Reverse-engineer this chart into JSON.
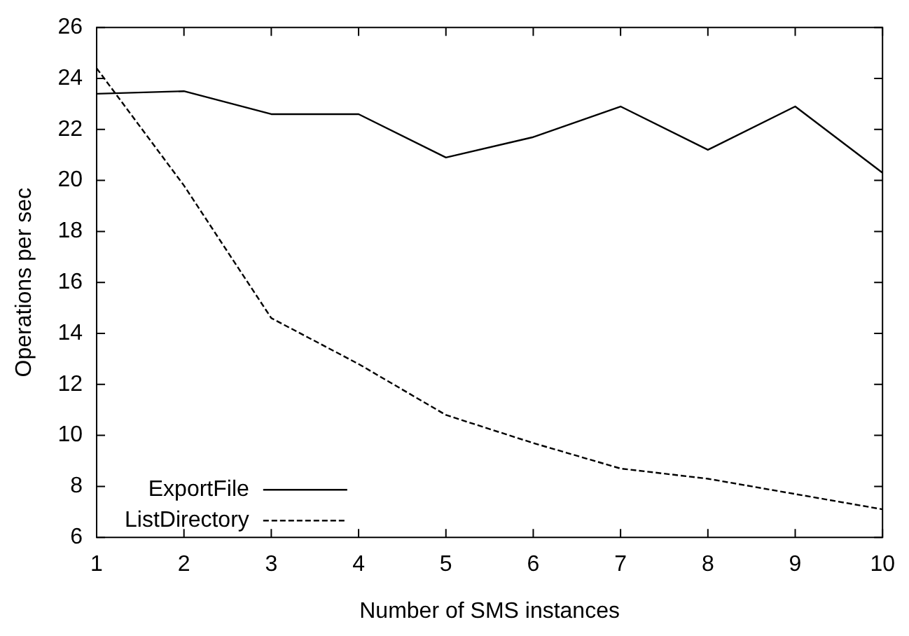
{
  "chart_data": {
    "type": "line",
    "xlabel": "Number of SMS instances",
    "ylabel": "Operations per sec",
    "x": [
      1,
      2,
      3,
      4,
      5,
      6,
      7,
      8,
      9,
      10
    ],
    "series": [
      {
        "name": "ExportFile",
        "color": "#000000",
        "line_style": "solid",
        "values": [
          23.4,
          23.5,
          22.6,
          22.6,
          20.9,
          21.7,
          22.9,
          21.2,
          22.9,
          20.3
        ]
      },
      {
        "name": "ListDirectory",
        "color": "#000000",
        "line_style": "dashed",
        "values": [
          24.4,
          19.8,
          14.6,
          12.8,
          10.8,
          9.7,
          8.7,
          8.3,
          7.7,
          7.1
        ]
      }
    ],
    "xlim": [
      1,
      10
    ],
    "xticks": [
      1,
      2,
      3,
      4,
      5,
      6,
      7,
      8,
      9,
      10
    ],
    "ylim": [
      6,
      26
    ],
    "yticks": [
      6,
      8,
      10,
      12,
      14,
      16,
      18,
      20,
      22,
      24,
      26
    ],
    "grid": false,
    "legend": "bottom left",
    "marker": "none"
  }
}
